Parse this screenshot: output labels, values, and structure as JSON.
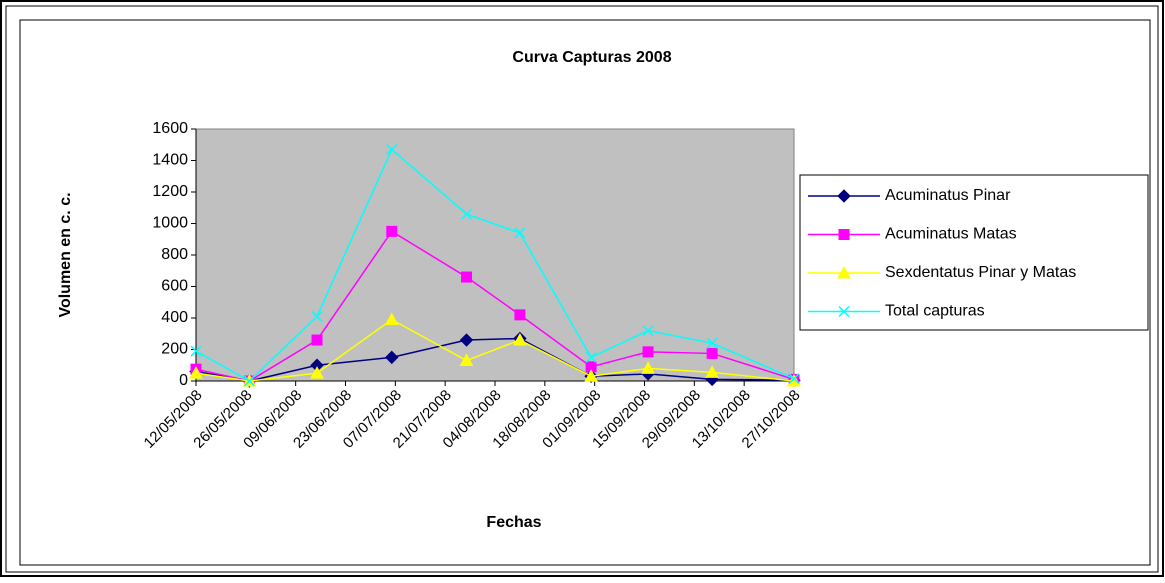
{
  "chart_data": {
    "type": "line",
    "title": "Curva Capturas 2008",
    "x_label": "Fechas",
    "y_label": "Volumen en c. c.",
    "x": [
      "12/05/2008",
      "27/05/2008",
      "15/06/2008",
      "06/07/2008",
      "27/07/2008",
      "11/08/2008",
      "31/08/2008",
      "16/09/2008",
      "04/10/2008",
      "27/10/2008"
    ],
    "series": [
      {
        "name": "Acuminatus Pinar",
        "color": "#000080",
        "marker": "diamond",
        "values": [
          60,
          0,
          100,
          150,
          260,
          270,
          30,
          45,
          10,
          5
        ]
      },
      {
        "name": "Acuminatus Matas",
        "color": "#ff00ff",
        "marker": "square",
        "values": [
          75,
          0,
          260,
          950,
          660,
          420,
          90,
          185,
          175,
          10
        ]
      },
      {
        "name": "Sexdentatus Pinar y Matas",
        "color": "#ffff00",
        "marker": "triangle",
        "values": [
          50,
          0,
          50,
          390,
          130,
          260,
          30,
          80,
          55,
          0
        ]
      },
      {
        "name": "Total capturas",
        "color": "#00ffff",
        "marker": "x",
        "values": [
          190,
          0,
          410,
          1470,
          1060,
          940,
          150,
          320,
          240,
          15
        ]
      }
    ],
    "xlim": [
      "12/05/2008",
      "27/10/2008"
    ],
    "xticks": [
      "12/05/2008",
      "26/05/2008",
      "09/06/2008",
      "23/06/2008",
      "07/07/2008",
      "21/07/2008",
      "04/08/2008",
      "18/08/2008",
      "01/09/2008",
      "15/09/2008",
      "29/09/2008",
      "13/10/2008",
      "27/10/2008"
    ],
    "ylim": [
      0,
      1600
    ],
    "yticks": [
      0,
      200,
      400,
      600,
      800,
      1000,
      1200,
      1400,
      1600
    ],
    "plot_background": "#c0c0c0",
    "legend": "right"
  }
}
